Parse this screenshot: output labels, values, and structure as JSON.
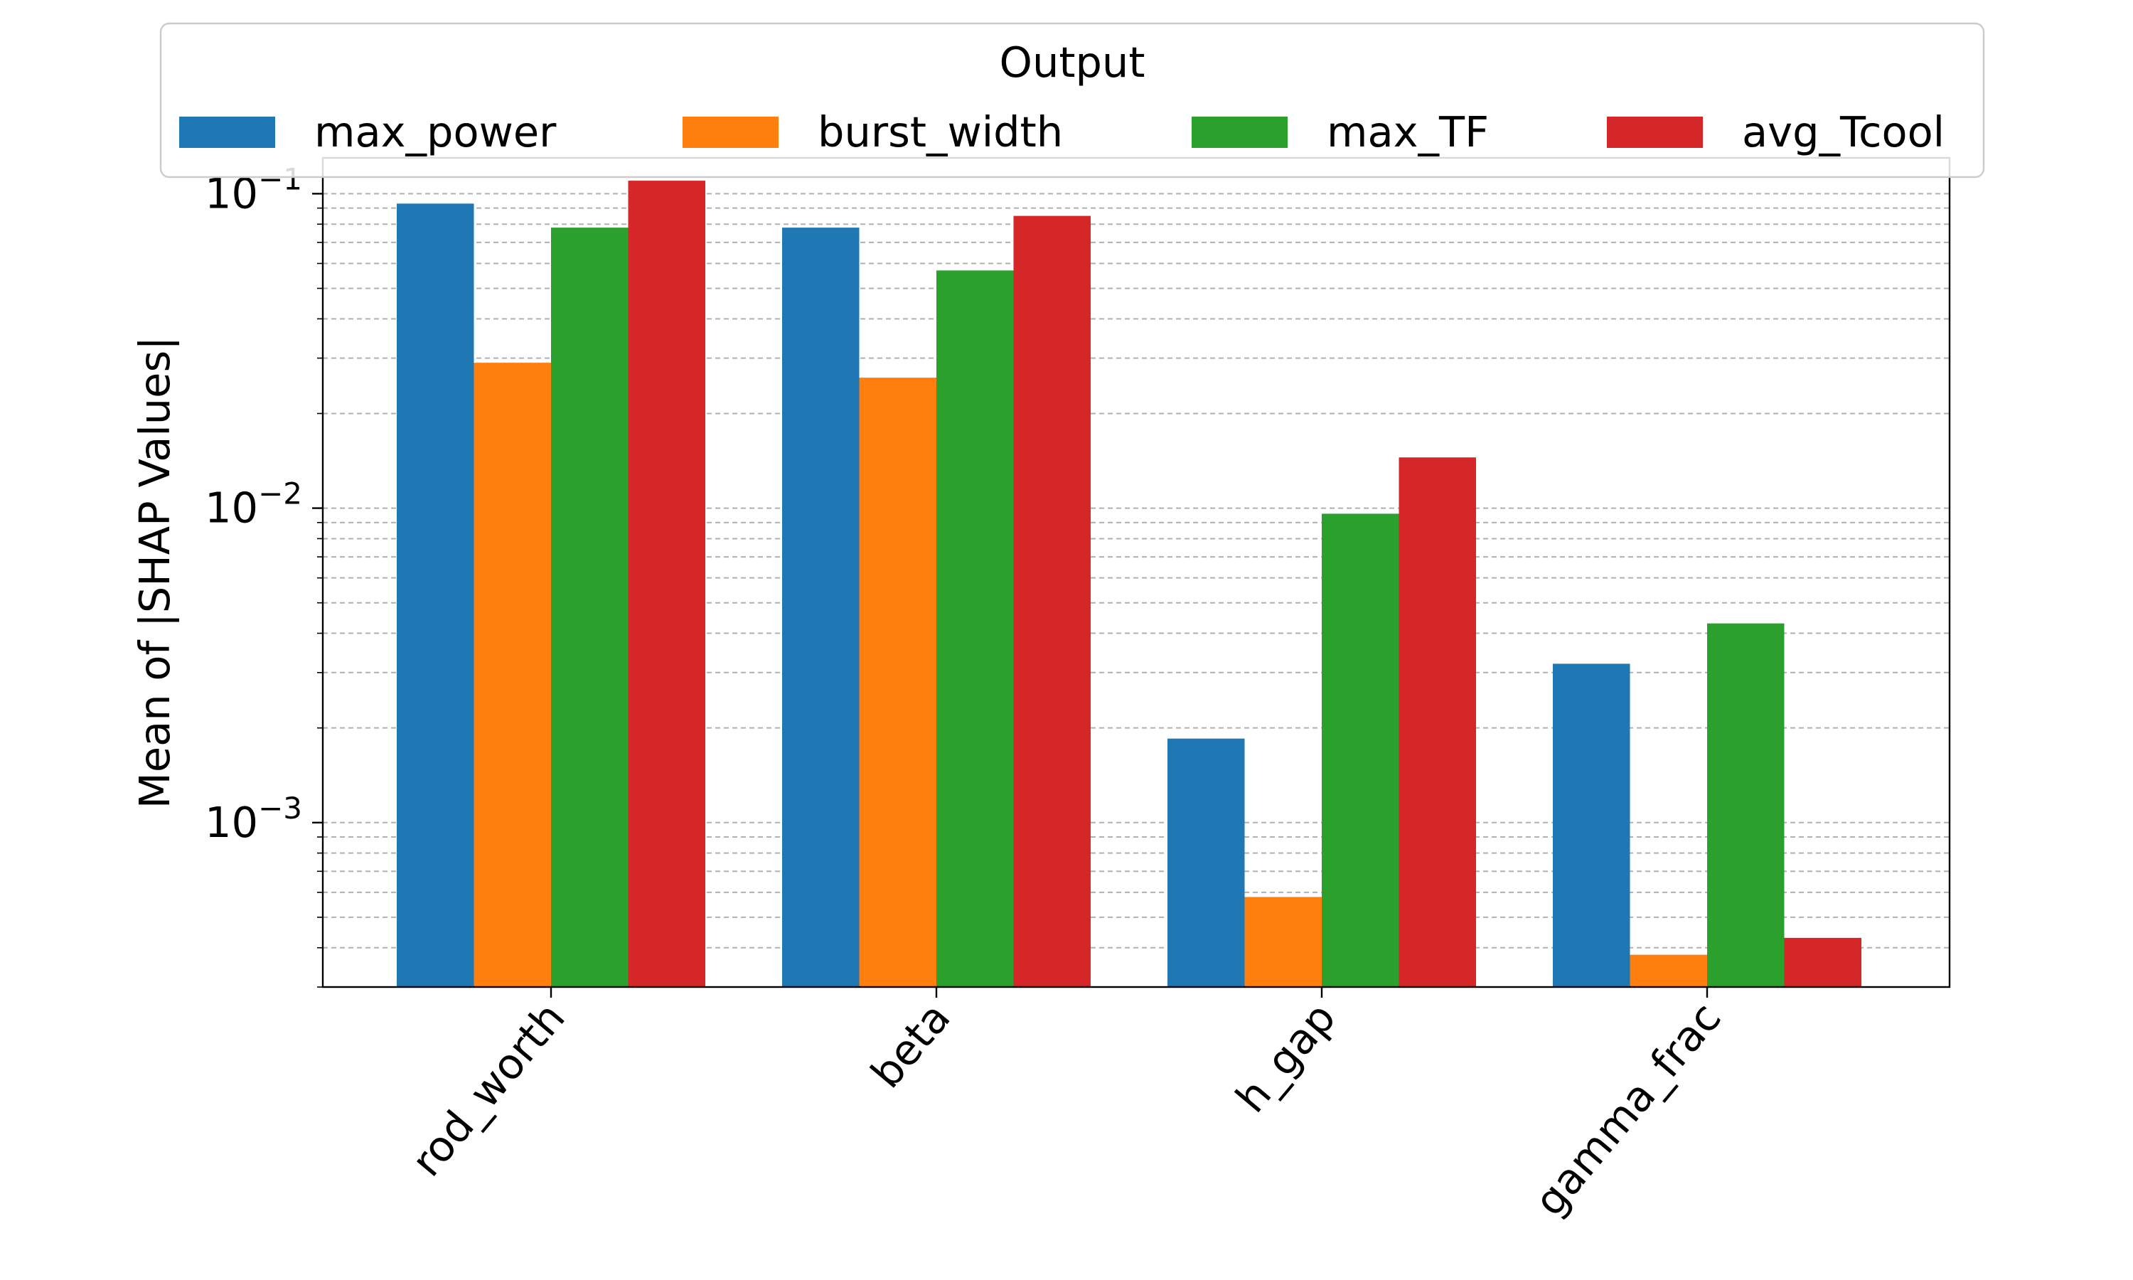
{
  "chart_data": {
    "type": "bar",
    "title": "",
    "xlabel": "",
    "ylabel": "Mean of |SHAP Values|",
    "yscale": "log",
    "ylim": [
      0.0003,
      0.13
    ],
    "grid": "y (major and minor, dashed)",
    "categories": [
      "rod_worth",
      "beta",
      "h_gap",
      "gamma_frac"
    ],
    "y_tick_labels": [
      {
        "value": 0.001,
        "base": "10",
        "exp": "−3"
      },
      {
        "value": 0.01,
        "base": "10",
        "exp": "−2"
      },
      {
        "value": 0.1,
        "base": "10",
        "exp": "−1"
      }
    ],
    "legend": {
      "title": "Output",
      "placement": "top-center"
    },
    "series": [
      {
        "name": "max_power",
        "color": "#1f77b4",
        "values": [
          0.093,
          0.078,
          0.00185,
          0.0032
        ]
      },
      {
        "name": "burst_width",
        "color": "#ff7f0e",
        "values": [
          0.029,
          0.026,
          0.00058,
          0.00038
        ]
      },
      {
        "name": "max_TF",
        "color": "#2ca02c",
        "values": [
          0.078,
          0.057,
          0.0096,
          0.0043
        ]
      },
      {
        "name": "avg_Tcool",
        "color": "#d62728",
        "values": [
          0.11,
          0.085,
          0.0145,
          0.00043
        ]
      }
    ]
  }
}
